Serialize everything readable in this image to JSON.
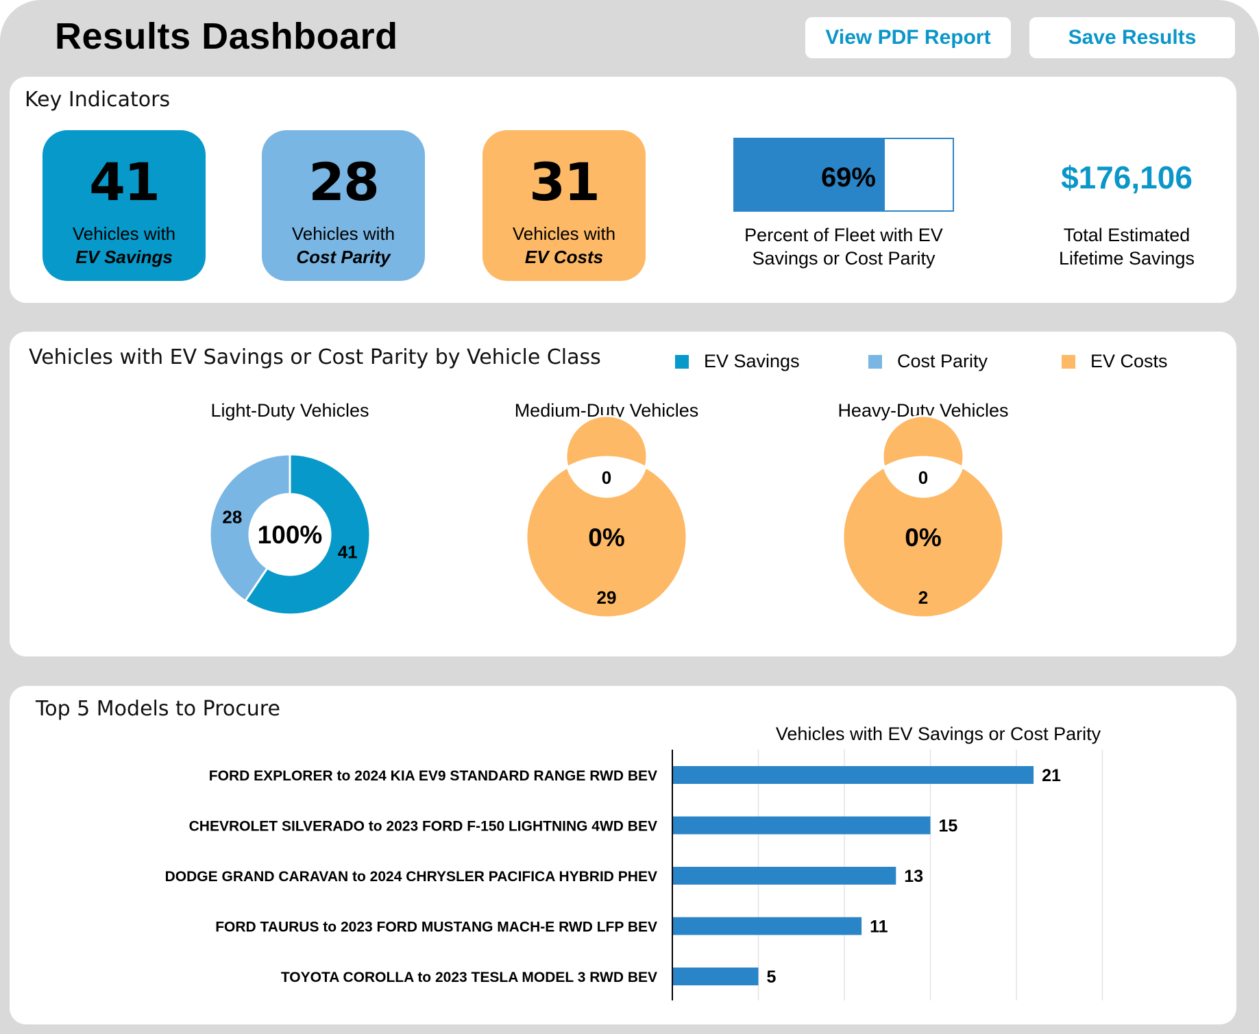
{
  "header": {
    "title": "Results Dashboard",
    "view_pdf_label": "View PDF Report",
    "save_label": "Save Results"
  },
  "key_indicators": {
    "title": "Key Indicators",
    "cards": [
      {
        "value": "41",
        "line1": "Vehicles with",
        "line2": "EV Savings",
        "color": "#0699c9"
      },
      {
        "value": "28",
        "line1": "Vehicles with",
        "line2": "Cost Parity",
        "color": "#7ab6e3"
      },
      {
        "value": "31",
        "line1": "Vehicles with",
        "line2": "EV Costs",
        "color": "#fdb965"
      }
    ],
    "percent": {
      "value": "69%",
      "fraction": 0.69,
      "line1": "Percent of Fleet with EV",
      "line2": "Savings or Cost Parity"
    },
    "savings": {
      "value": "$176,106",
      "line1": "Total Estimated",
      "line2": "Lifetime Savings"
    }
  },
  "class_chart": {
    "title": "Vehicles with EV Savings or Cost Parity by Vehicle Class",
    "legend": [
      {
        "label": "EV Savings",
        "color": "#0699c9"
      },
      {
        "label": "Cost Parity",
        "color": "#7ab6e3"
      },
      {
        "label": "EV Costs",
        "color": "#fdb965"
      }
    ]
  },
  "top_models": {
    "title": "Top 5 Models to Procure",
    "chart_title": "Vehicles with EV Savings or Cost Parity"
  },
  "chart_data": [
    {
      "type": "pie",
      "title": "Light-Duty Vehicles",
      "center_label": "100%",
      "labels": [
        "EV Savings",
        "Cost Parity",
        "EV Costs"
      ],
      "values": [
        41,
        28,
        0
      ]
    },
    {
      "type": "pie",
      "title": "Medium-Duty Vehicles",
      "center_label": "0%",
      "labels": [
        "EV Savings",
        "Cost Parity",
        "EV Costs"
      ],
      "values": [
        0,
        0,
        29
      ]
    },
    {
      "type": "pie",
      "title": "Heavy-Duty Vehicles",
      "center_label": "0%",
      "labels": [
        "EV Savings",
        "Cost Parity",
        "EV Costs"
      ],
      "values": [
        0,
        0,
        2
      ]
    },
    {
      "type": "bar",
      "orientation": "horizontal",
      "title": "Vehicles with EV Savings or Cost Parity",
      "categories": [
        "FORD EXPLORER to 2024 KIA EV9 STANDARD RANGE RWD BEV",
        "CHEVROLET SILVERADO to 2023 FORD F-150 LIGHTNING 4WD BEV",
        "DODGE GRAND CARAVAN to 2024 CHRYSLER PACIFICA HYBRID PHEV",
        "FORD TAURUS to 2023 FORD MUSTANG MACH-E RWD LFP BEV",
        "TOYOTA COROLLA to 2023 TESLA MODEL 3 RWD BEV"
      ],
      "values": [
        21,
        15,
        13,
        11,
        5
      ],
      "xlim": [
        0,
        25
      ],
      "grid": true,
      "color": "#2a85c8"
    }
  ]
}
